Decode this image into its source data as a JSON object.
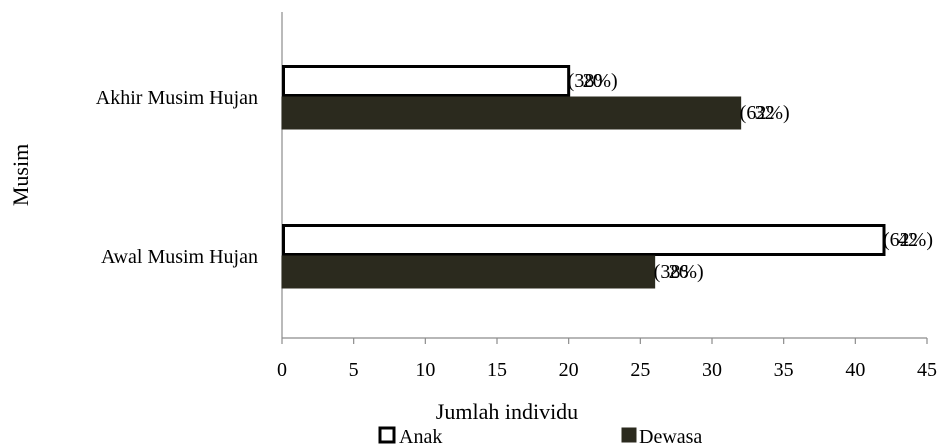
{
  "chart_data": {
    "type": "bar",
    "orientation": "horizontal",
    "title": "",
    "xlabel": "Jumlah individu",
    "ylabel": "Musim",
    "xlim": [
      0,
      45
    ],
    "x_ticks": [
      0,
      5,
      10,
      15,
      20,
      25,
      30,
      35,
      40,
      45
    ],
    "grid": false,
    "legend_position": "bottom",
    "categories": [
      "Akhir Musim Hujan",
      "Awal Musim Hujan"
    ],
    "series": [
      {
        "name": "Anak",
        "values": [
          20,
          42
        ],
        "percent_labels": [
          "(38%)",
          "(62%)"
        ],
        "fill": "#ffffff",
        "stroke": "#000000"
      },
      {
        "name": "Dewasa",
        "values": [
          32,
          26
        ],
        "percent_labels": [
          "(62%)",
          "(38%)"
        ],
        "fill": "#2b2a1e",
        "stroke": "#2b2a1e"
      }
    ]
  }
}
